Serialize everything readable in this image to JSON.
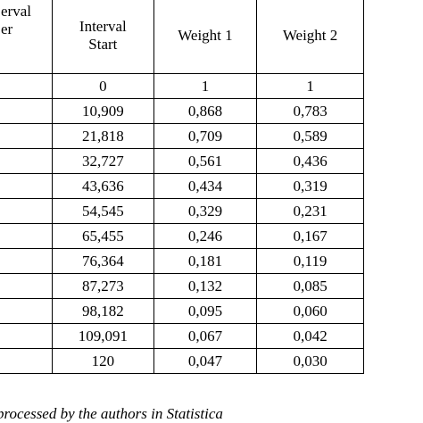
{
  "table": {
    "header": {
      "interval_number_lines": [
        "erval",
        "er"
      ],
      "interval_start_lines": [
        "Interval",
        "Start"
      ],
      "weight1": "Weight 1",
      "weight2": "Weight 2"
    },
    "rows": [
      {
        "num": "",
        "start": "0",
        "w1": "1",
        "w2": "1"
      },
      {
        "num": "",
        "start": "10,909",
        "w1": "0,868",
        "w2": "0,783"
      },
      {
        "num": "",
        "start": "21,818",
        "w1": "0,709",
        "w2": "0,589"
      },
      {
        "num": "",
        "start": "32,727",
        "w1": "0,561",
        "w2": "0,436"
      },
      {
        "num": "",
        "start": "43,636",
        "w1": "0,434",
        "w2": "0,319"
      },
      {
        "num": "",
        "start": "54,545",
        "w1": "0,329",
        "w2": "0,231"
      },
      {
        "num": "",
        "start": "65,455",
        "w1": "0,246",
        "w2": "0,167"
      },
      {
        "num": "",
        "start": "76,364",
        "w1": "0,181",
        "w2": "0,119"
      },
      {
        "num": "",
        "start": "87,273",
        "w1": "0,132",
        "w2": "0,085"
      },
      {
        "num": "",
        "start": "98,182",
        "w1": "0,095",
        "w2": "0,060"
      },
      {
        "num": "",
        "start": "109,091",
        "w1": "0,067",
        "w2": "0,042"
      },
      {
        "num": "",
        "start": "120",
        "w1": "0,047",
        "w2": "0,030"
      }
    ]
  },
  "source_note": "processed by the authors in Statistica"
}
